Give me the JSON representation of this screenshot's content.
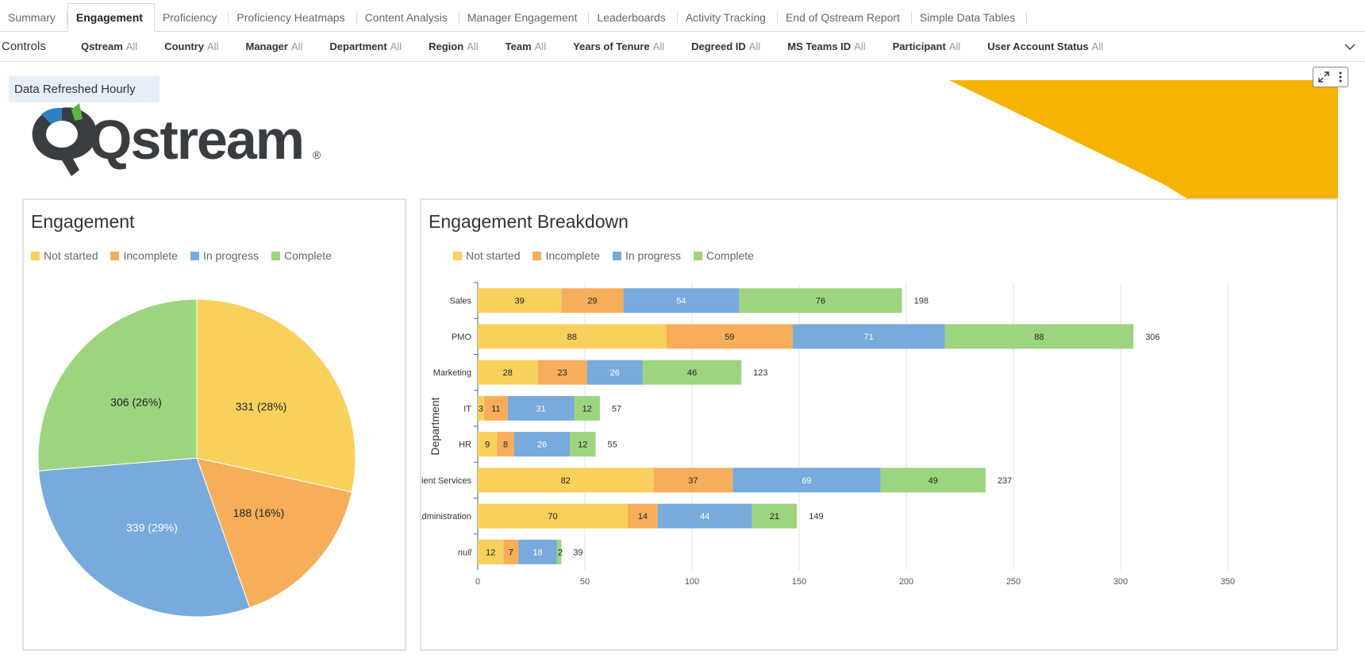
{
  "tabs": [
    "Summary",
    "Engagement",
    "Proficiency",
    "Proficiency Heatmaps",
    "Content Analysis",
    "Manager Engagement",
    "Leaderboards",
    "Activity Tracking",
    "End of Qstream Report",
    "Simple Data Tables"
  ],
  "active_tab": "Engagement",
  "controls": {
    "label": "Controls",
    "filters": [
      {
        "name": "Qstream",
        "value": "All"
      },
      {
        "name": "Country",
        "value": "All"
      },
      {
        "name": "Manager",
        "value": "All"
      },
      {
        "name": "Department",
        "value": "All"
      },
      {
        "name": "Region",
        "value": "All"
      },
      {
        "name": "Team",
        "value": "All"
      },
      {
        "name": "Years of Tenure",
        "value": "All"
      },
      {
        "name": "Degreed ID",
        "value": "All"
      },
      {
        "name": "MS Teams ID",
        "value": "All"
      },
      {
        "name": "Participant",
        "value": "All"
      },
      {
        "name": "User Account Status",
        "value": "All"
      }
    ]
  },
  "refresh_note": "Data Refreshed Hourly",
  "logo": {
    "text": "Qstream",
    "mark": "®"
  },
  "colors": {
    "not_started": "#f8d15c",
    "incomplete": "#f6ae5b",
    "in_progress": "#78aadb",
    "complete": "#9dd47f",
    "banner": "#f5b301",
    "logo_dark": "#3a3d40",
    "logo_blue": "#2f7fc4",
    "logo_green": "#5cb645"
  },
  "legend": [
    "Not started",
    "Incomplete",
    "In progress",
    "Complete"
  ],
  "chart_data": [
    {
      "type": "pie",
      "title": "Engagement",
      "labels": [
        "Not started",
        "Incomplete",
        "In progress",
        "Complete"
      ],
      "values": [
        331,
        188,
        339,
        306
      ],
      "data_labels": [
        "331 (28%)",
        "188 (16%)",
        "339 (29%)",
        "306 (26%)"
      ]
    },
    {
      "type": "bar",
      "orientation": "horizontal",
      "stacked": true,
      "title": "Engagement Breakdown",
      "ylabel": "Department",
      "xlabel": "",
      "categories": [
        "Sales",
        "PMO",
        "Marketing",
        "IT",
        "HR",
        "Client Services",
        "Administration",
        "null"
      ],
      "series": [
        {
          "name": "Not started",
          "values": [
            39,
            88,
            28,
            3,
            9,
            82,
            70,
            12
          ]
        },
        {
          "name": "Incomplete",
          "values": [
            29,
            59,
            23,
            11,
            8,
            37,
            14,
            7
          ]
        },
        {
          "name": "In progress",
          "values": [
            54,
            71,
            26,
            31,
            26,
            69,
            44,
            18
          ]
        },
        {
          "name": "Complete",
          "values": [
            76,
            88,
            46,
            12,
            12,
            49,
            21,
            2
          ]
        }
      ],
      "totals": [
        198,
        306,
        123,
        57,
        55,
        237,
        149,
        39
      ],
      "xlim": [
        0,
        350
      ],
      "xticks": [
        0,
        50,
        100,
        150,
        200,
        250,
        300,
        350
      ],
      "grid": true
    }
  ]
}
